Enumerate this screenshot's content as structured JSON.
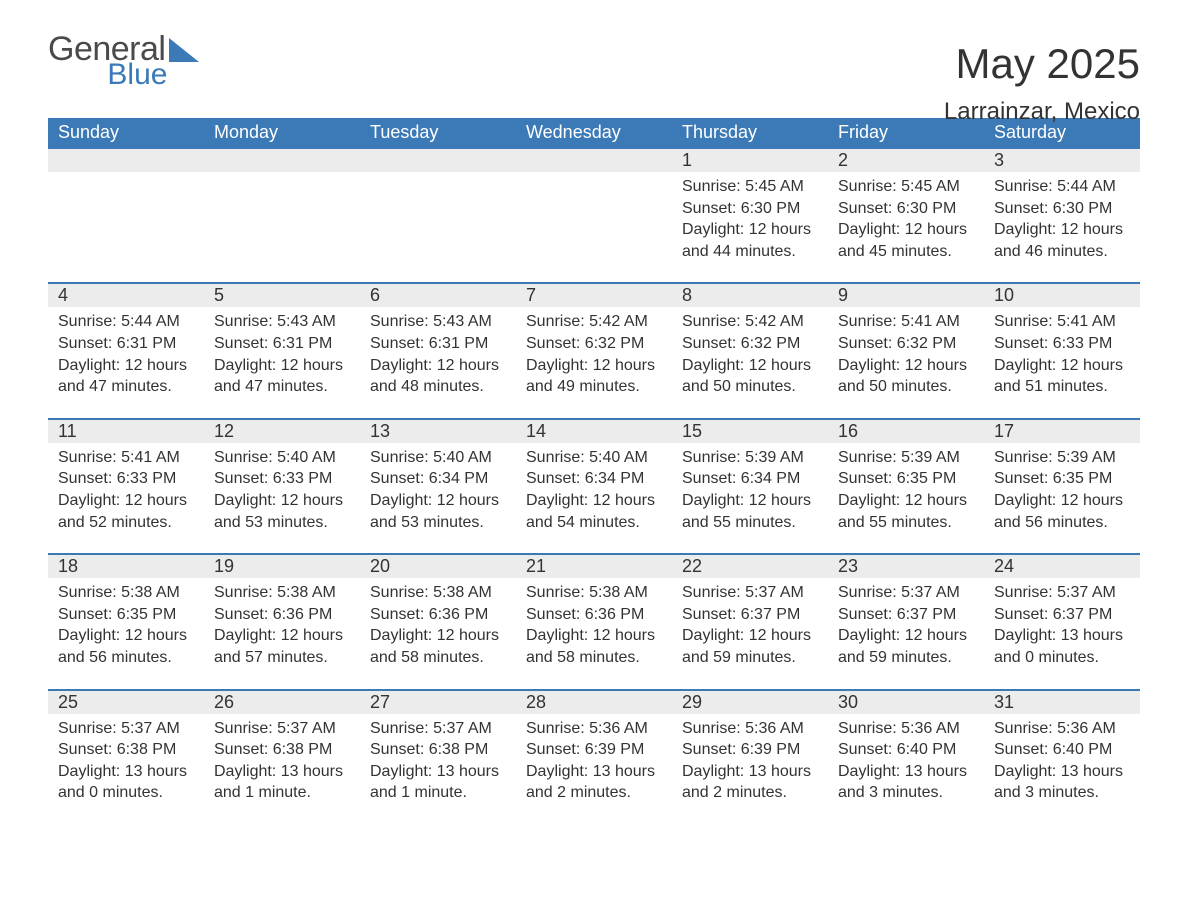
{
  "logo": {
    "general": "General",
    "blue": "Blue"
  },
  "header": {
    "month": "May 2025",
    "location": "Larrainzar, Mexico"
  },
  "colors": {
    "header_bg": "#3b79b7",
    "header_text": "#ffffff",
    "daynum_bg": "#ececec",
    "row_border": "#3b79b7",
    "body_text": "#333333",
    "logo_gray": "#4a4a4a"
  },
  "weekdays": [
    "Sunday",
    "Monday",
    "Tuesday",
    "Wednesday",
    "Thursday",
    "Friday",
    "Saturday"
  ],
  "weeks": [
    [
      {
        "empty": true
      },
      {
        "empty": true
      },
      {
        "empty": true
      },
      {
        "empty": true
      },
      {
        "day": "1",
        "sunrise": "Sunrise: 5:45 AM",
        "sunset": "Sunset: 6:30 PM",
        "dl1": "Daylight: 12 hours",
        "dl2": "and 44 minutes."
      },
      {
        "day": "2",
        "sunrise": "Sunrise: 5:45 AM",
        "sunset": "Sunset: 6:30 PM",
        "dl1": "Daylight: 12 hours",
        "dl2": "and 45 minutes."
      },
      {
        "day": "3",
        "sunrise": "Sunrise: 5:44 AM",
        "sunset": "Sunset: 6:30 PM",
        "dl1": "Daylight: 12 hours",
        "dl2": "and 46 minutes."
      }
    ],
    [
      {
        "day": "4",
        "sunrise": "Sunrise: 5:44 AM",
        "sunset": "Sunset: 6:31 PM",
        "dl1": "Daylight: 12 hours",
        "dl2": "and 47 minutes."
      },
      {
        "day": "5",
        "sunrise": "Sunrise: 5:43 AM",
        "sunset": "Sunset: 6:31 PM",
        "dl1": "Daylight: 12 hours",
        "dl2": "and 47 minutes."
      },
      {
        "day": "6",
        "sunrise": "Sunrise: 5:43 AM",
        "sunset": "Sunset: 6:31 PM",
        "dl1": "Daylight: 12 hours",
        "dl2": "and 48 minutes."
      },
      {
        "day": "7",
        "sunrise": "Sunrise: 5:42 AM",
        "sunset": "Sunset: 6:32 PM",
        "dl1": "Daylight: 12 hours",
        "dl2": "and 49 minutes."
      },
      {
        "day": "8",
        "sunrise": "Sunrise: 5:42 AM",
        "sunset": "Sunset: 6:32 PM",
        "dl1": "Daylight: 12 hours",
        "dl2": "and 50 minutes."
      },
      {
        "day": "9",
        "sunrise": "Sunrise: 5:41 AM",
        "sunset": "Sunset: 6:32 PM",
        "dl1": "Daylight: 12 hours",
        "dl2": "and 50 minutes."
      },
      {
        "day": "10",
        "sunrise": "Sunrise: 5:41 AM",
        "sunset": "Sunset: 6:33 PM",
        "dl1": "Daylight: 12 hours",
        "dl2": "and 51 minutes."
      }
    ],
    [
      {
        "day": "11",
        "sunrise": "Sunrise: 5:41 AM",
        "sunset": "Sunset: 6:33 PM",
        "dl1": "Daylight: 12 hours",
        "dl2": "and 52 minutes."
      },
      {
        "day": "12",
        "sunrise": "Sunrise: 5:40 AM",
        "sunset": "Sunset: 6:33 PM",
        "dl1": "Daylight: 12 hours",
        "dl2": "and 53 minutes."
      },
      {
        "day": "13",
        "sunrise": "Sunrise: 5:40 AM",
        "sunset": "Sunset: 6:34 PM",
        "dl1": "Daylight: 12 hours",
        "dl2": "and 53 minutes."
      },
      {
        "day": "14",
        "sunrise": "Sunrise: 5:40 AM",
        "sunset": "Sunset: 6:34 PM",
        "dl1": "Daylight: 12 hours",
        "dl2": "and 54 minutes."
      },
      {
        "day": "15",
        "sunrise": "Sunrise: 5:39 AM",
        "sunset": "Sunset: 6:34 PM",
        "dl1": "Daylight: 12 hours",
        "dl2": "and 55 minutes."
      },
      {
        "day": "16",
        "sunrise": "Sunrise: 5:39 AM",
        "sunset": "Sunset: 6:35 PM",
        "dl1": "Daylight: 12 hours",
        "dl2": "and 55 minutes."
      },
      {
        "day": "17",
        "sunrise": "Sunrise: 5:39 AM",
        "sunset": "Sunset: 6:35 PM",
        "dl1": "Daylight: 12 hours",
        "dl2": "and 56 minutes."
      }
    ],
    [
      {
        "day": "18",
        "sunrise": "Sunrise: 5:38 AM",
        "sunset": "Sunset: 6:35 PM",
        "dl1": "Daylight: 12 hours",
        "dl2": "and 56 minutes."
      },
      {
        "day": "19",
        "sunrise": "Sunrise: 5:38 AM",
        "sunset": "Sunset: 6:36 PM",
        "dl1": "Daylight: 12 hours",
        "dl2": "and 57 minutes."
      },
      {
        "day": "20",
        "sunrise": "Sunrise: 5:38 AM",
        "sunset": "Sunset: 6:36 PM",
        "dl1": "Daylight: 12 hours",
        "dl2": "and 58 minutes."
      },
      {
        "day": "21",
        "sunrise": "Sunrise: 5:38 AM",
        "sunset": "Sunset: 6:36 PM",
        "dl1": "Daylight: 12 hours",
        "dl2": "and 58 minutes."
      },
      {
        "day": "22",
        "sunrise": "Sunrise: 5:37 AM",
        "sunset": "Sunset: 6:37 PM",
        "dl1": "Daylight: 12 hours",
        "dl2": "and 59 minutes."
      },
      {
        "day": "23",
        "sunrise": "Sunrise: 5:37 AM",
        "sunset": "Sunset: 6:37 PM",
        "dl1": "Daylight: 12 hours",
        "dl2": "and 59 minutes."
      },
      {
        "day": "24",
        "sunrise": "Sunrise: 5:37 AM",
        "sunset": "Sunset: 6:37 PM",
        "dl1": "Daylight: 13 hours",
        "dl2": "and 0 minutes."
      }
    ],
    [
      {
        "day": "25",
        "sunrise": "Sunrise: 5:37 AM",
        "sunset": "Sunset: 6:38 PM",
        "dl1": "Daylight: 13 hours",
        "dl2": "and 0 minutes."
      },
      {
        "day": "26",
        "sunrise": "Sunrise: 5:37 AM",
        "sunset": "Sunset: 6:38 PM",
        "dl1": "Daylight: 13 hours",
        "dl2": "and 1 minute."
      },
      {
        "day": "27",
        "sunrise": "Sunrise: 5:37 AM",
        "sunset": "Sunset: 6:38 PM",
        "dl1": "Daylight: 13 hours",
        "dl2": "and 1 minute."
      },
      {
        "day": "28",
        "sunrise": "Sunrise: 5:36 AM",
        "sunset": "Sunset: 6:39 PM",
        "dl1": "Daylight: 13 hours",
        "dl2": "and 2 minutes."
      },
      {
        "day": "29",
        "sunrise": "Sunrise: 5:36 AM",
        "sunset": "Sunset: 6:39 PM",
        "dl1": "Daylight: 13 hours",
        "dl2": "and 2 minutes."
      },
      {
        "day": "30",
        "sunrise": "Sunrise: 5:36 AM",
        "sunset": "Sunset: 6:40 PM",
        "dl1": "Daylight: 13 hours",
        "dl2": "and 3 minutes."
      },
      {
        "day": "31",
        "sunrise": "Sunrise: 5:36 AM",
        "sunset": "Sunset: 6:40 PM",
        "dl1": "Daylight: 13 hours",
        "dl2": "and 3 minutes."
      }
    ]
  ]
}
